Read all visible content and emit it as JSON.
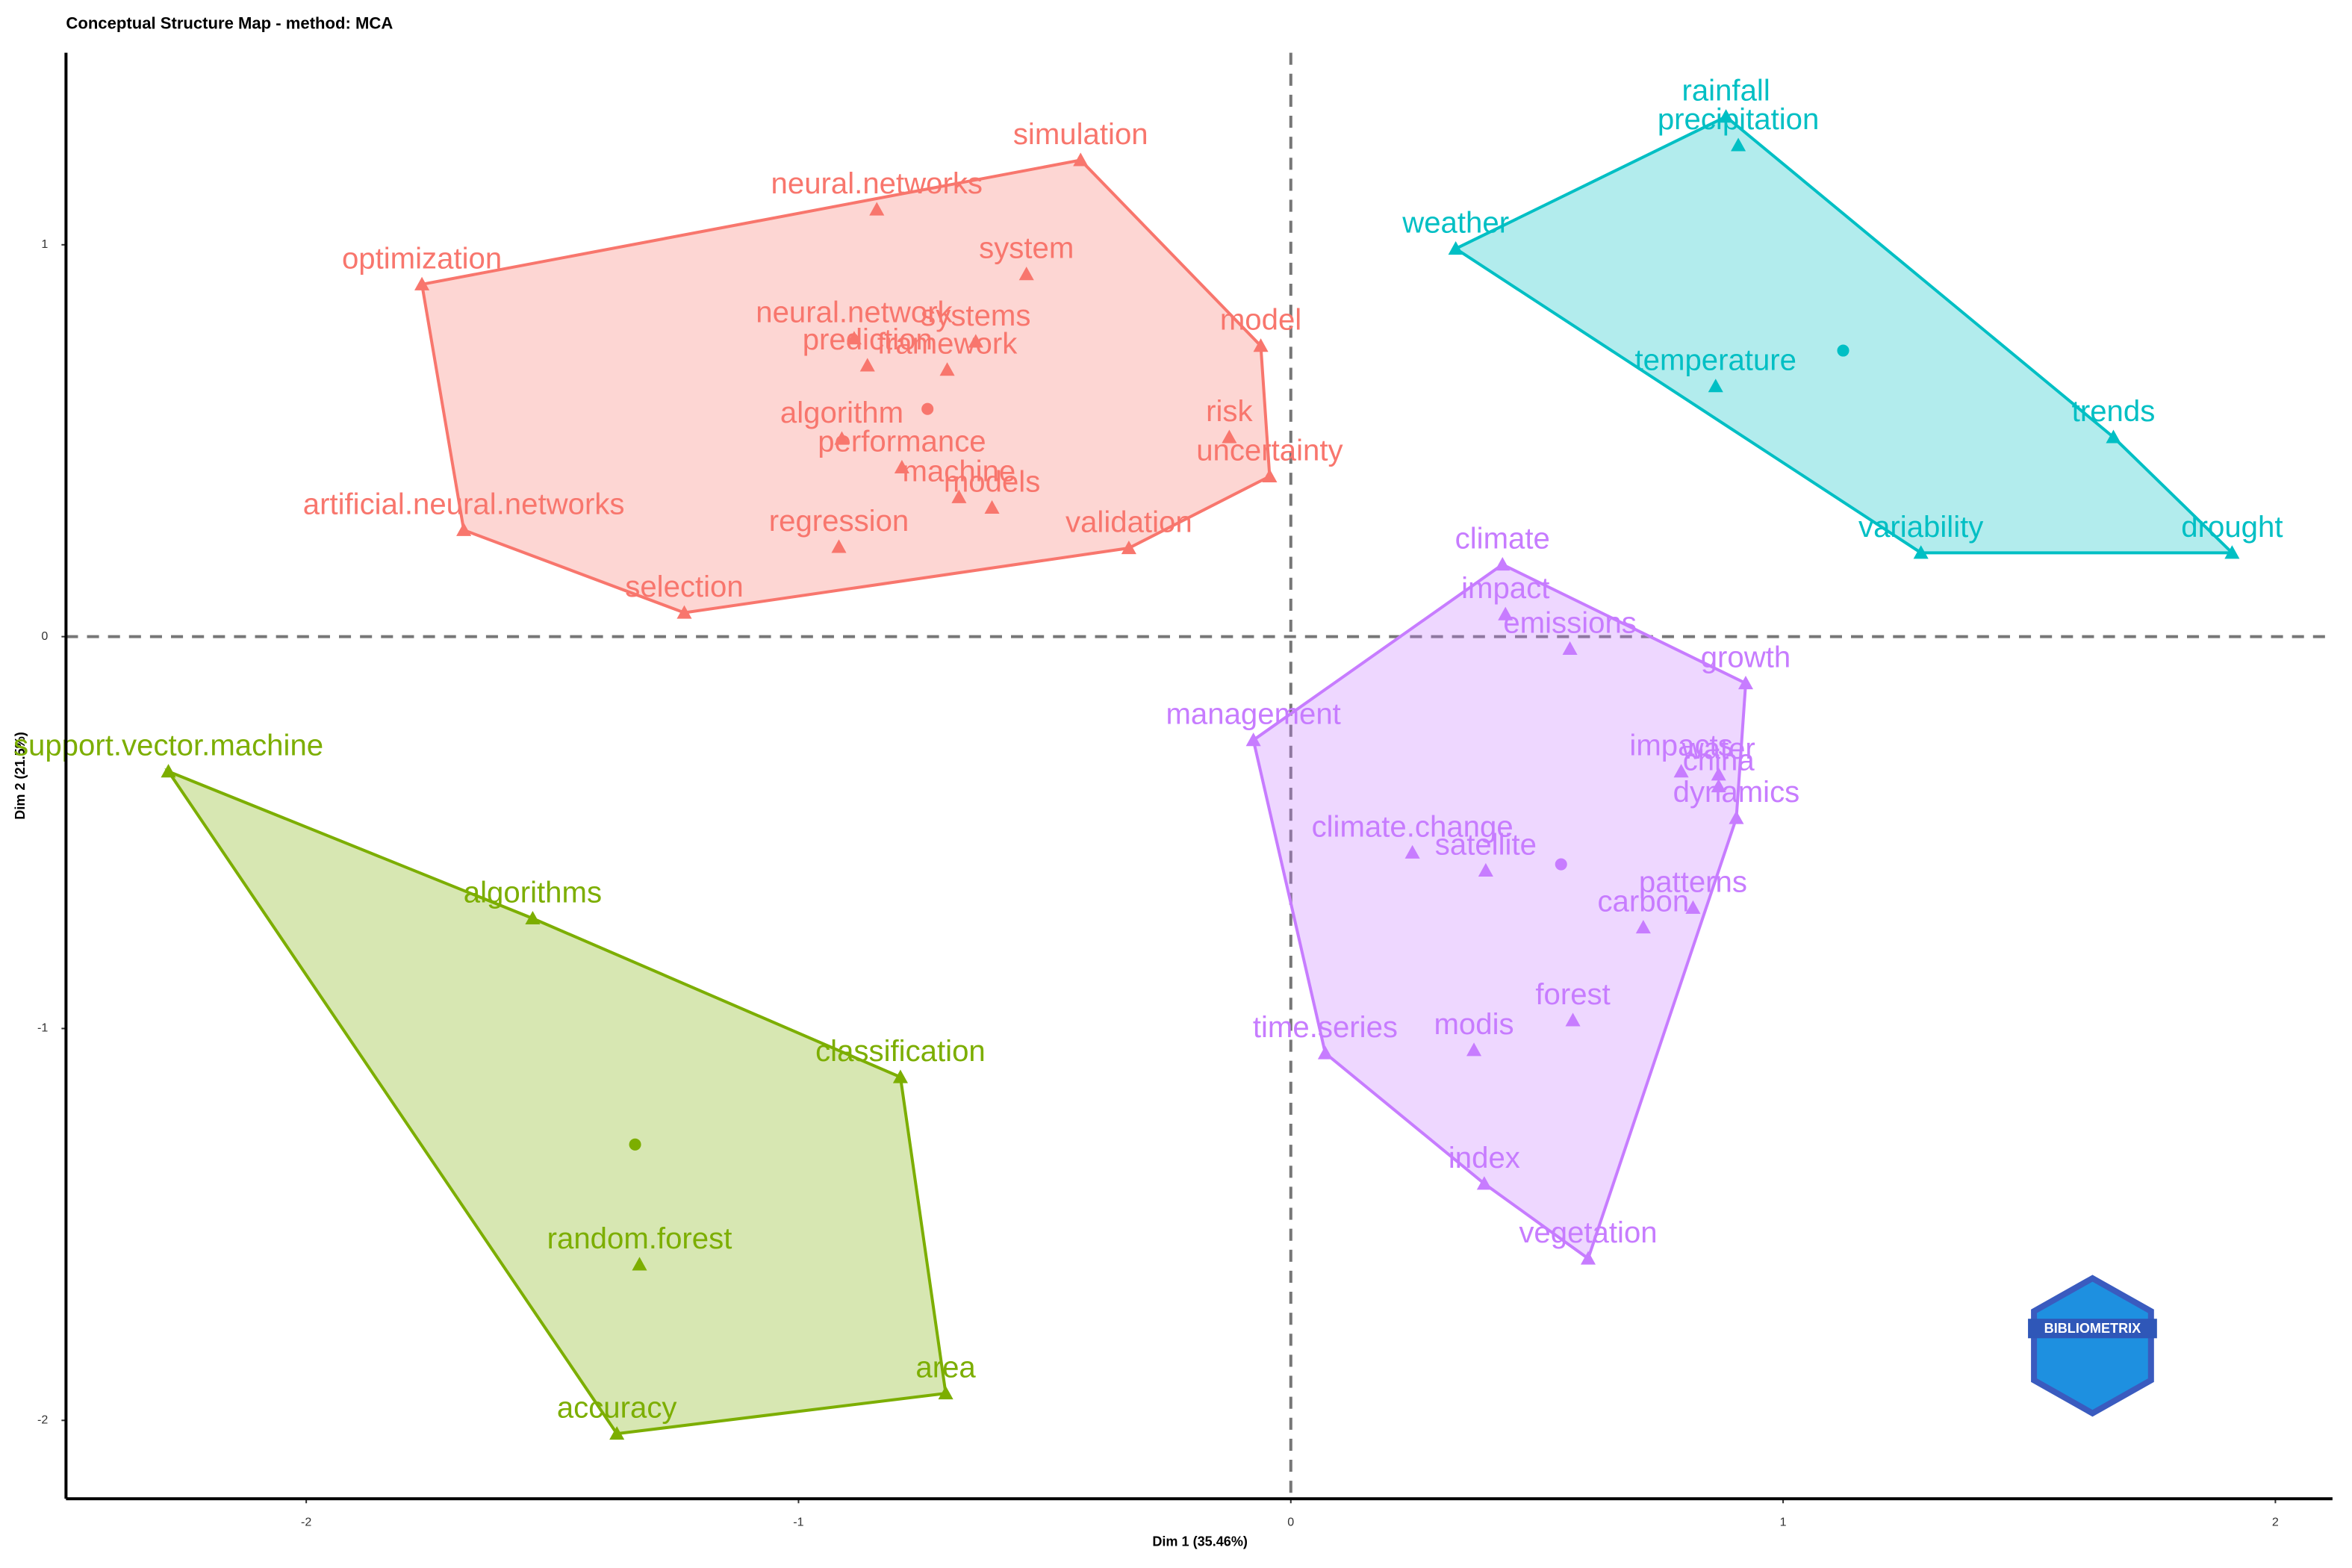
{
  "chart_data": {
    "type": "scatter",
    "title": "Conceptual Structure Map - method: MCA",
    "x_label": "Dim 1 (35.46%)",
    "y_label": "Dim 2 (21.5%)",
    "logo": "BIBLIOMETRIX",
    "xlim": [
      -2.488,
      2.116
    ],
    "ylim": [
      -2.2,
      1.49
    ],
    "xticks": [
      -2,
      -1,
      0,
      1,
      2
    ],
    "yticks": [
      -2,
      -1,
      0,
      1
    ],
    "series": [
      {
        "color": "#F8766D",
        "labels": [
          "simulation",
          "neural.networks",
          "system",
          "optimization",
          "model",
          "neural.network",
          "systems",
          "prediction",
          "framework",
          "algorithm",
          "performance",
          "risk",
          "uncertainty",
          "machine",
          "models",
          "artificial.neural.networks",
          "regression",
          "validation",
          "selection"
        ],
        "x": [
          -0.427,
          -0.841,
          -0.537,
          -1.765,
          -0.061,
          -0.887,
          -0.64,
          -0.86,
          -0.698,
          -0.912,
          -0.79,
          -0.125,
          -0.043,
          -0.674,
          -0.607,
          -1.68,
          -0.918,
          -0.329,
          -1.232
        ],
        "values": [
          1.216,
          1.09,
          0.925,
          0.899,
          0.742,
          0.761,
          0.753,
          0.692,
          0.681,
          0.505,
          0.432,
          0.509,
          0.409,
          0.356,
          0.329,
          0.272,
          0.229,
          0.226,
          0.061
        ],
        "centroid_x": -0.738,
        "centroid_y": 0.581
      },
      {
        "color": "#00BFC4",
        "labels": [
          "rainfall",
          "precipitation",
          "weather",
          "temperature",
          "trends",
          "variability",
          "drought"
        ],
        "x": [
          0.884,
          0.909,
          0.335,
          0.863,
          1.671,
          1.28,
          1.912
        ],
        "values": [
          1.327,
          1.254,
          0.99,
          0.639,
          0.509,
          0.214,
          0.214
        ],
        "centroid_x": 1.122,
        "centroid_y": 0.73
      },
      {
        "color": "#C77CFF",
        "labels": [
          "climate",
          "impact",
          "emissions",
          "growth",
          "management",
          "impacts",
          "water",
          "china",
          "dynamics",
          "climate.change",
          "satellite",
          "patterns",
          "carbon",
          "forest",
          "time.series",
          "modis",
          "index",
          "vegetation"
        ],
        "x": [
          0.43,
          0.436,
          0.567,
          0.924,
          -0.076,
          0.793,
          0.869,
          0.869,
          0.905,
          0.247,
          0.396,
          0.817,
          0.716,
          0.573,
          0.07,
          0.372,
          0.393,
          0.604
        ],
        "values": [
          0.184,
          0.057,
          -0.031,
          -0.119,
          -0.264,
          -0.344,
          -0.352,
          -0.382,
          -0.463,
          -0.551,
          -0.597,
          -0.692,
          -0.742,
          -0.979,
          -1.063,
          -1.055,
          -1.396,
          -1.587
        ],
        "centroid_x": 0.549,
        "centroid_y": -0.581
      },
      {
        "color": "#7CAE00",
        "labels": [
          "support.vector.machine",
          "algorithms",
          "classification",
          "random.forest",
          "area",
          "accuracy"
        ],
        "x": [
          -2.28,
          -1.54,
          -0.793,
          -1.323,
          -0.701,
          -1.369
        ],
        "values": [
          -0.344,
          -0.719,
          -1.124,
          -1.602,
          -1.931,
          -2.034
        ],
        "centroid_x": -1.332,
        "centroid_y": -1.296
      }
    ]
  }
}
